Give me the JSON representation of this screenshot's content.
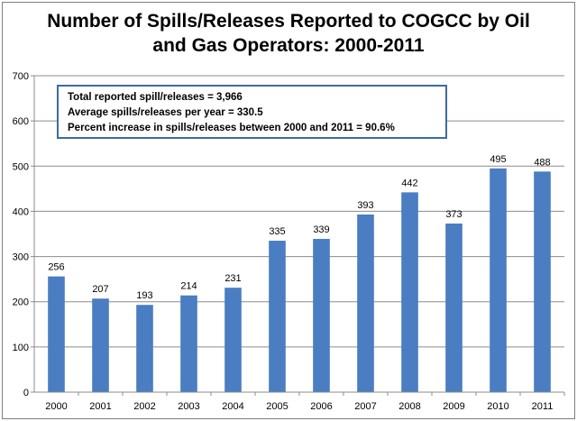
{
  "chart_data": {
    "type": "bar",
    "title_lines": [
      "Number of Spills/Releases Reported to COGCC by Oil",
      "and Gas Operators: 2000-2011"
    ],
    "categories": [
      "2000",
      "2001",
      "2002",
      "2003",
      "2004",
      "2005",
      "2006",
      "2007",
      "2008",
      "2009",
      "2010",
      "2011"
    ],
    "values": [
      256,
      207,
      193,
      214,
      231,
      335,
      339,
      393,
      442,
      373,
      495,
      488
    ],
    "data_labels": [
      "256",
      "207",
      "193",
      "214",
      "231",
      "335",
      "339",
      "393",
      "442",
      "373",
      "495",
      "488"
    ],
    "ylim": [
      0,
      700
    ],
    "yticks": [
      0,
      100,
      200,
      300,
      400,
      500,
      600,
      700
    ],
    "ytick_labels": [
      "0",
      "100",
      "200",
      "300",
      "400",
      "500",
      "600",
      "700"
    ],
    "grid": true,
    "legend": "none",
    "bar_color": "#4a7dc1",
    "annotation_lines": [
      "Total reported spill/releases = 3,966",
      "Average spills/releases per year =  330.5",
      "Percent increase in spills/releases between 2000 and 2011  = 90.6%"
    ]
  }
}
